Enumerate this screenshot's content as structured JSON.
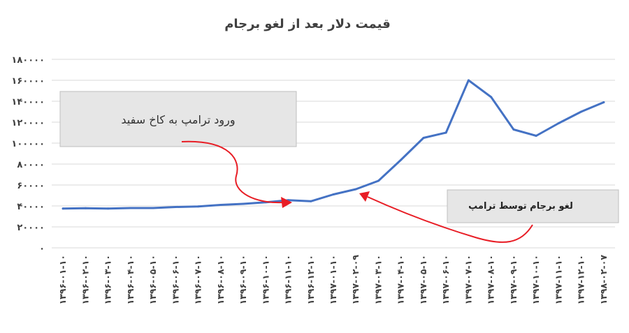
{
  "colors": {
    "series": "#4472c4",
    "arrow": "#e81d25",
    "grid": "#d9d9d9",
    "text": "#404040"
  },
  "chart_data": {
    "type": "line",
    "title": "قیمت دلار بعد از لغو برجام",
    "xlabel": "",
    "ylabel": "",
    "ylim": [
      0,
      180000
    ],
    "y_ticks": [
      {
        "value": 0,
        "label": "۰"
      },
      {
        "value": 20000,
        "label": "۲۰۰۰۰"
      },
      {
        "value": 40000,
        "label": "۴۰۰۰۰"
      },
      {
        "value": 60000,
        "label": "۶۰۰۰۰"
      },
      {
        "value": 80000,
        "label": "۸۰۰۰۰"
      },
      {
        "value": 100000,
        "label": "۱۰۰۰۰۰"
      },
      {
        "value": 120000,
        "label": "۱۲۰۰۰۰"
      },
      {
        "value": 140000,
        "label": "۱۴۰۰۰۰"
      },
      {
        "value": 160000,
        "label": "۱۶۰۰۰۰"
      },
      {
        "value": 180000,
        "label": "۱۸۰۰۰۰"
      }
    ],
    "grid": true,
    "legend": "none",
    "categories": [
      "۱۳۹۶-۰۱-۱۰",
      "۱۳۹۶-۰۲-۱۰",
      "۱۳۹۶-۰۳-۱۰",
      "۱۳۹۶-۰۴-۱۰",
      "۱۳۹۶-۰۵-۱۰",
      "۱۳۹۶-۰۶-۱۰",
      "۱۳۹۶-۰۷-۱۰",
      "۱۳۹۶-۰۸-۱۰",
      "۱۳۹۶-۰۹-۱۰",
      "۱۳۹۶-۱۰-۱۰",
      "۱۳۹۶-۱۱-۱۰",
      "۱۳۹۶-۱۲-۱۰",
      "۱۳۹۷-۰۱-۱۰",
      "۱۳۹۷-۰۲-۰۹",
      "۱۳۹۷-۰۳-۱۰",
      "۱۳۹۷-۰۴-۱۰",
      "۱۳۹۷-۰۵-۱۰",
      "۱۳۹۷-۰۶-۱۰",
      "۱۳۹۷-۰۷-۱۰",
      "۱۳۹۷-۰۸-۱۰",
      "۱۳۹۷-۰۹-۱۰",
      "۱۳۹۷-۱۰-۱۰",
      "۱۳۹۷-۱۱-۱۰",
      "۱۳۹۷-۱۲-۱۰",
      "۱۳۹۸-۰۲-۰۷"
    ],
    "series": [
      {
        "name": "",
        "values": [
          37500,
          37800,
          37500,
          38000,
          38000,
          39000,
          39500,
          41000,
          42000,
          43500,
          45500,
          44500,
          51000,
          56000,
          64000,
          84000,
          105000,
          110000,
          160000,
          144000,
          113000,
          107000,
          119000,
          130000,
          139000
        ]
      }
    ],
    "annotations": [
      {
        "text": "ورود ترامپ به کاخ سفید",
        "points_to": "۱۳۹۶-۱۱-۱۰"
      },
      {
        "text": "لغو برجام توسط ترامپ",
        "points_to": "۱۳۹۷-۰۲-۰۹"
      }
    ]
  }
}
